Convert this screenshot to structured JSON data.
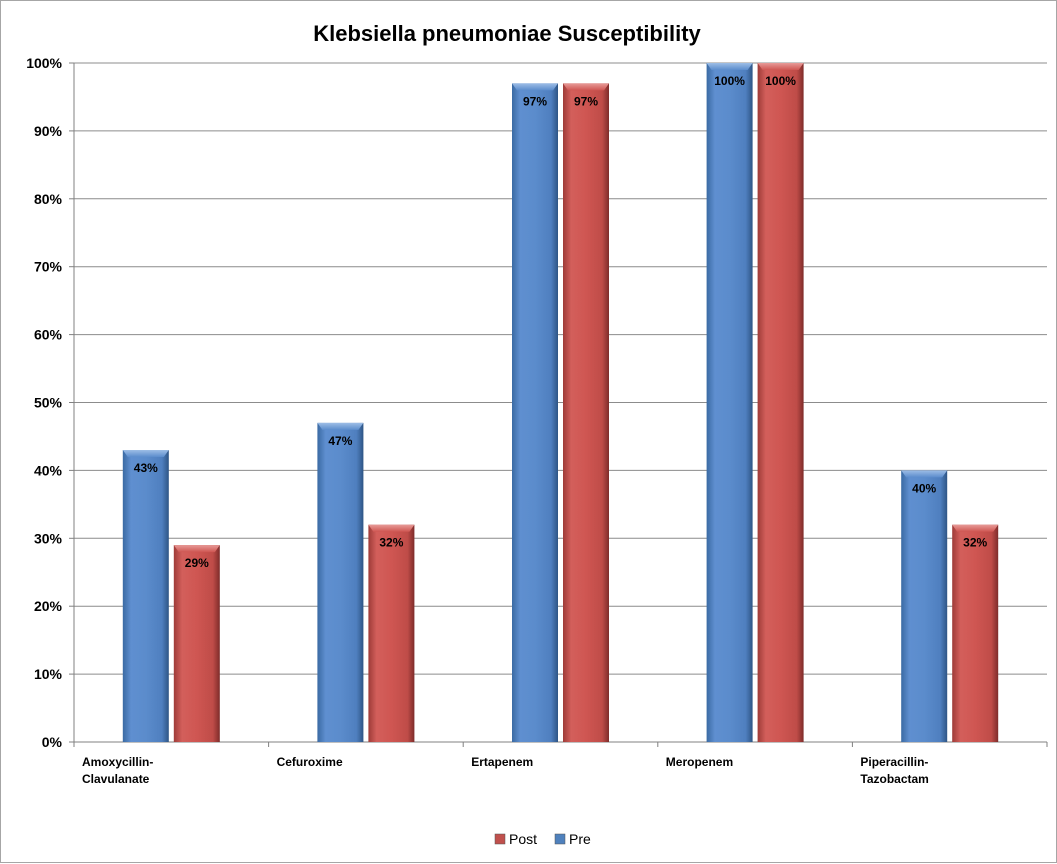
{
  "chart_data": {
    "type": "bar",
    "title": "Klebsiella pneumoniae Susceptibility",
    "categories": [
      [
        "Amoxycillin-",
        "Clavulanate"
      ],
      [
        "Cefuroxime"
      ],
      [
        "Ertapenem"
      ],
      [
        "Meropenem"
      ],
      [
        "Piperacillin-",
        "Tazobactam"
      ]
    ],
    "series": [
      {
        "name": "Pre",
        "values": [
          43,
          47,
          97,
          100,
          40
        ],
        "labels": [
          "43%",
          "47%",
          "97%",
          "100%",
          "40%"
        ],
        "color": "#4f81bd"
      },
      {
        "name": "Post",
        "values": [
          29,
          32,
          97,
          100,
          32
        ],
        "labels": [
          "29%",
          "32%",
          "97%",
          "100%",
          "32%"
        ],
        "color": "#c0504d"
      }
    ],
    "yticks": [
      "0%",
      "10%",
      "20%",
      "30%",
      "40%",
      "50%",
      "60%",
      "70%",
      "80%",
      "90%",
      "100%"
    ],
    "ylim": [
      0,
      100
    ],
    "grid": true,
    "legend": {
      "position": "bottom",
      "order": [
        "Post",
        "Pre"
      ]
    }
  }
}
